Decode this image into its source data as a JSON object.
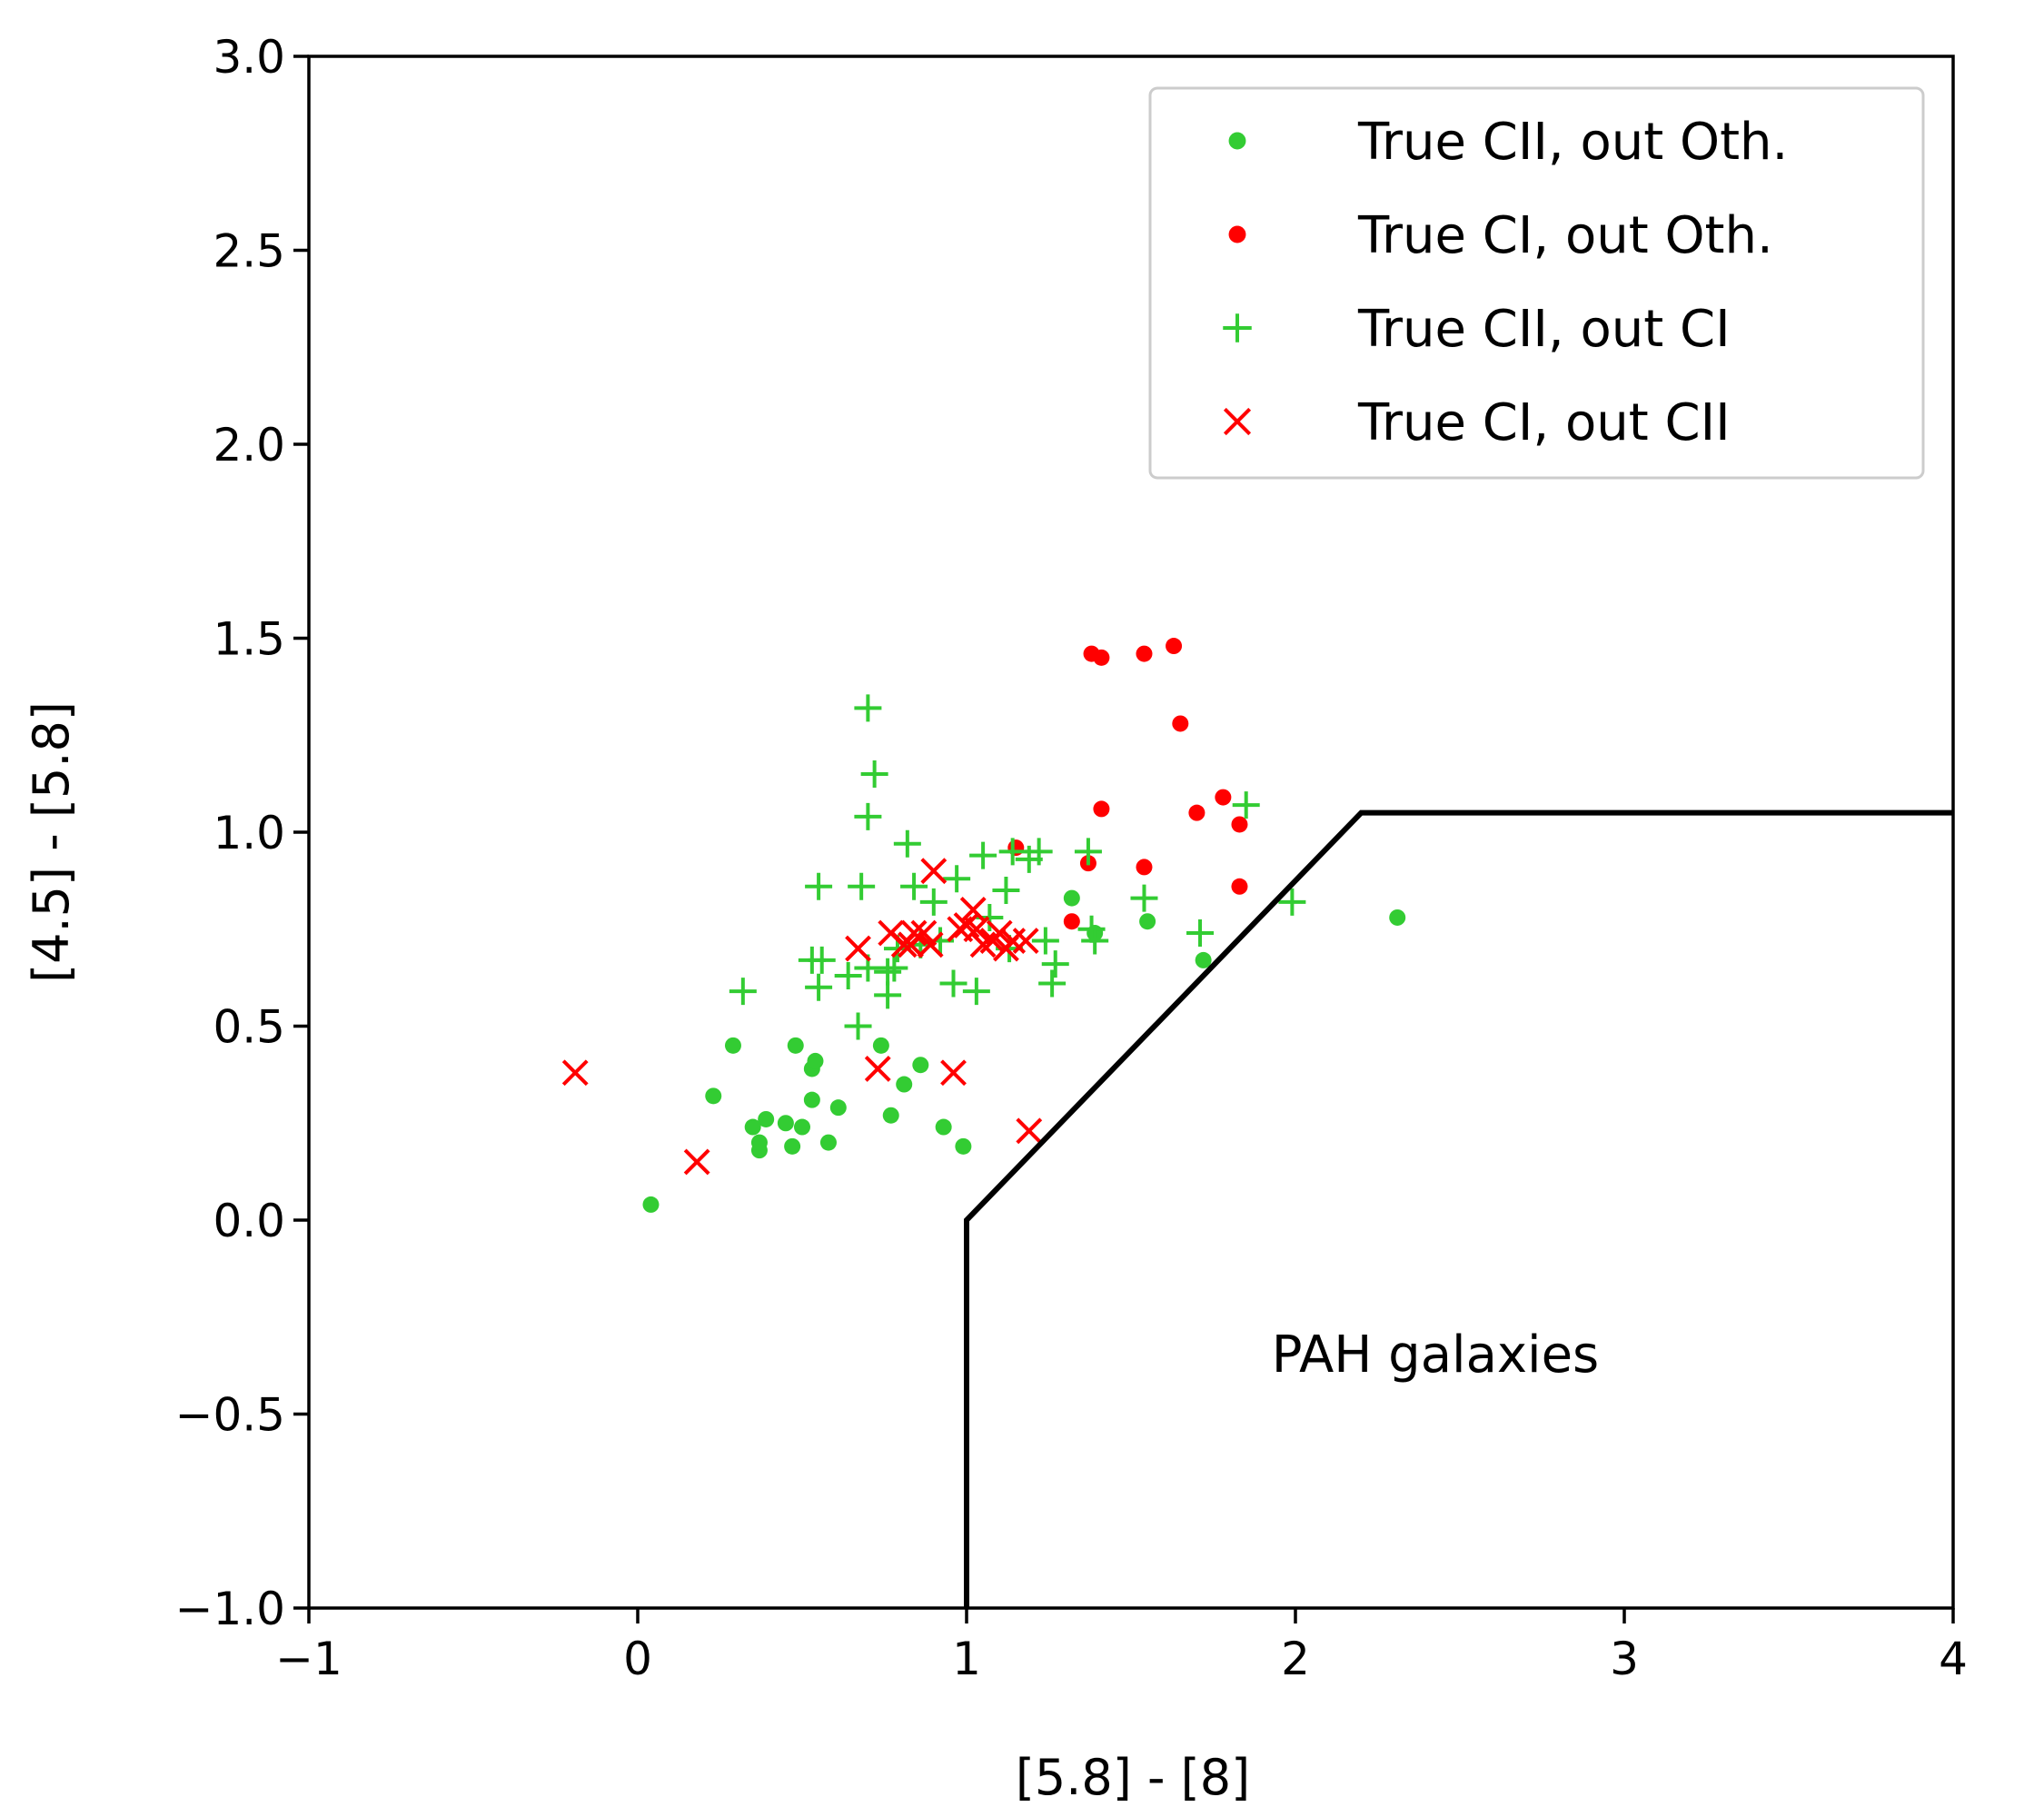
{
  "chart_data": {
    "type": "scatter",
    "title": "",
    "xlabel": "[5.8] - [8]",
    "ylabel": "[4.5] - [5.8]",
    "xlim": [
      -1,
      4
    ],
    "ylim": [
      -1.0,
      3.0
    ],
    "grid": false,
    "legend_position": "top-right",
    "x_ticks": [
      -1,
      0,
      1,
      2,
      3,
      4
    ],
    "x_tick_labels": [
      "−1",
      "0",
      "1",
      "2",
      "3",
      "4"
    ],
    "y_ticks": [
      -1.0,
      -0.5,
      0.0,
      0.5,
      1.0,
      1.5,
      2.0,
      2.5,
      3.0
    ],
    "y_tick_labels": [
      "−1.0",
      "−0.5",
      "0.0",
      "0.5",
      "1.0",
      "1.5",
      "2.0",
      "2.5",
      "3.0"
    ],
    "boundary": {
      "x": [
        1.0,
        1.0,
        2.2,
        4.0
      ],
      "y": [
        -1.0,
        0.0,
        1.05,
        1.05
      ],
      "color": "#000000"
    },
    "annotations": [
      {
        "text": "PAH galaxies",
        "x": 2.2,
        "y": -0.35
      }
    ],
    "series": [
      {
        "name": "True CII, out Oth.",
        "marker": "dot",
        "color": "#33cc33",
        "x": [
          0.04,
          0.23,
          0.29,
          0.35,
          0.37,
          0.37,
          0.39,
          0.45,
          0.47,
          0.48,
          0.5,
          0.53,
          0.53,
          0.54,
          0.58,
          0.61,
          0.74,
          0.77,
          0.81,
          0.86,
          0.93,
          0.99,
          1.32,
          1.39,
          1.55,
          1.72,
          2.31
        ],
        "y": [
          0.04,
          0.32,
          0.45,
          0.24,
          0.18,
          0.2,
          0.26,
          0.25,
          0.19,
          0.45,
          0.24,
          0.39,
          0.31,
          0.41,
          0.2,
          0.29,
          0.45,
          0.27,
          0.35,
          0.4,
          0.24,
          0.19,
          0.83,
          0.74,
          0.77,
          0.67,
          0.78
        ]
      },
      {
        "name": "True CI, out Oth.",
        "marker": "dot",
        "color": "#ff0000",
        "x": [
          1.15,
          1.32,
          1.37,
          1.38,
          1.41,
          1.41,
          1.54,
          1.54,
          1.63,
          1.65,
          1.7,
          1.78,
          1.83,
          1.83
        ],
        "y": [
          0.96,
          0.77,
          0.92,
          1.46,
          1.45,
          1.06,
          0.91,
          1.46,
          1.48,
          1.28,
          1.05,
          1.09,
          1.02,
          0.86
        ]
      },
      {
        "name": "True CII, out CI",
        "marker": "plus",
        "color": "#33cc33",
        "x": [
          0.32,
          0.53,
          0.55,
          0.55,
          0.56,
          0.64,
          0.67,
          0.68,
          0.7,
          0.7,
          0.7,
          0.72,
          0.76,
          0.76,
          0.78,
          0.79,
          0.82,
          0.84,
          0.86,
          0.9,
          0.92,
          0.96,
          0.97,
          1.03,
          1.05,
          1.07,
          1.12,
          1.13,
          1.14,
          1.19,
          1.22,
          1.24,
          1.26,
          1.27,
          1.37,
          1.38,
          1.39,
          1.54,
          1.71,
          1.85,
          1.99
        ],
        "y": [
          0.59,
          0.67,
          0.86,
          0.6,
          0.67,
          0.63,
          0.5,
          0.86,
          0.65,
          1.04,
          1.32,
          1.15,
          0.64,
          0.58,
          0.65,
          0.7,
          0.97,
          0.86,
          0.71,
          0.82,
          0.72,
          0.61,
          0.88,
          0.59,
          0.94,
          0.78,
          0.85,
          0.7,
          0.95,
          0.93,
          0.95,
          0.72,
          0.61,
          0.66,
          0.95,
          0.75,
          0.72,
          0.83,
          0.74,
          1.07,
          0.82
        ]
      },
      {
        "name": "True CI, out CII",
        "marker": "x",
        "color": "#ff0000",
        "x": [
          -0.19,
          0.18,
          0.67,
          0.73,
          0.77,
          0.81,
          0.83,
          0.84,
          0.87,
          0.89,
          0.9,
          0.96,
          0.98,
          1.0,
          1.02,
          1.03,
          1.05,
          1.08,
          1.1,
          1.12,
          1.14,
          1.18,
          1.19
        ],
        "y": [
          0.38,
          0.15,
          0.7,
          0.39,
          0.74,
          0.71,
          0.71,
          0.74,
          0.74,
          0.71,
          0.9,
          0.38,
          0.75,
          0.76,
          0.8,
          0.75,
          0.71,
          0.72,
          0.74,
          0.7,
          0.72,
          0.72,
          0.23
        ]
      }
    ]
  }
}
